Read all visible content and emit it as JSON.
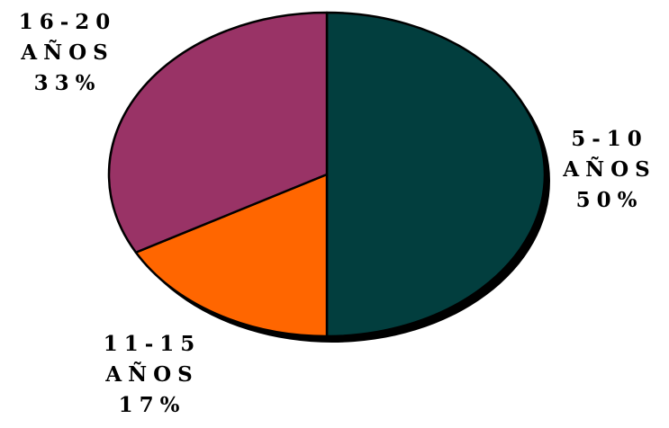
{
  "chart_data": {
    "type": "pie",
    "title": "",
    "slices": [
      {
        "category": "5-10",
        "unit": "AÑOS",
        "percent_label": "50%",
        "value": 50,
        "color": "#023E3E"
      },
      {
        "category": "11-15",
        "unit": "AÑOS",
        "percent_label": "17%",
        "value": 17,
        "color": "#FF6600"
      },
      {
        "category": "16-20",
        "unit": "AÑOS",
        "percent_label": "33%",
        "value": 33,
        "color": "#993366"
      }
    ],
    "start": "12 o'clock",
    "direction": "clockwise",
    "style": "3d-oval",
    "legend": "none"
  }
}
